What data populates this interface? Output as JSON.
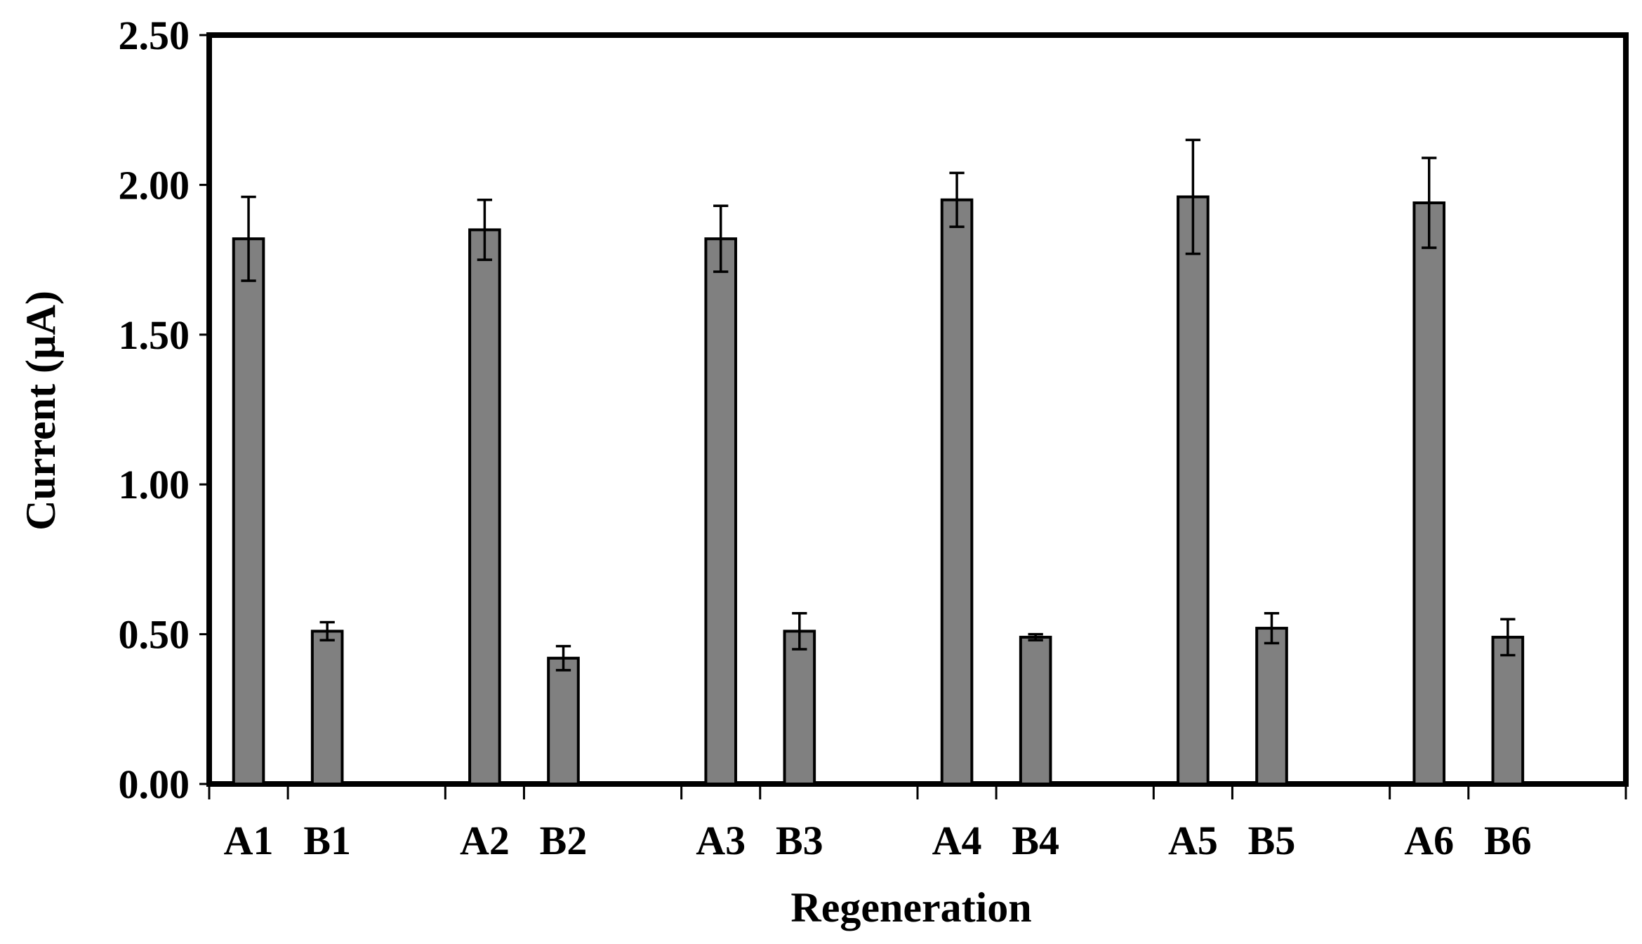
{
  "chart_data": {
    "type": "bar",
    "xlabel": "Regeneration",
    "ylabel": "Current (µA)",
    "ylim": [
      0,
      2.5
    ],
    "yticks": [
      "0.00",
      "0.50",
      "1.00",
      "1.50",
      "2.00",
      "2.50"
    ],
    "grid": false,
    "groups": [
      {
        "A_label": "A1",
        "B_label": "B1"
      },
      {
        "A_label": "A2",
        "B_label": "B2"
      },
      {
        "A_label": "A3",
        "B_label": "B3"
      },
      {
        "A_label": "A4",
        "B_label": "B4"
      },
      {
        "A_label": "A5",
        "B_label": "B5"
      },
      {
        "A_label": "A6",
        "B_label": "B6"
      }
    ],
    "categories": [
      "A1",
      "B1",
      "A2",
      "B2",
      "A3",
      "B3",
      "A4",
      "B4",
      "A5",
      "B5",
      "A6",
      "B6"
    ],
    "values": [
      1.82,
      0.51,
      1.85,
      0.42,
      1.82,
      0.51,
      1.95,
      0.49,
      1.96,
      0.52,
      1.94,
      0.49
    ],
    "errors": [
      0.14,
      0.03,
      0.1,
      0.04,
      0.11,
      0.06,
      0.09,
      0.01,
      0.19,
      0.05,
      0.15,
      0.06
    ],
    "bar_color": "#808080"
  }
}
